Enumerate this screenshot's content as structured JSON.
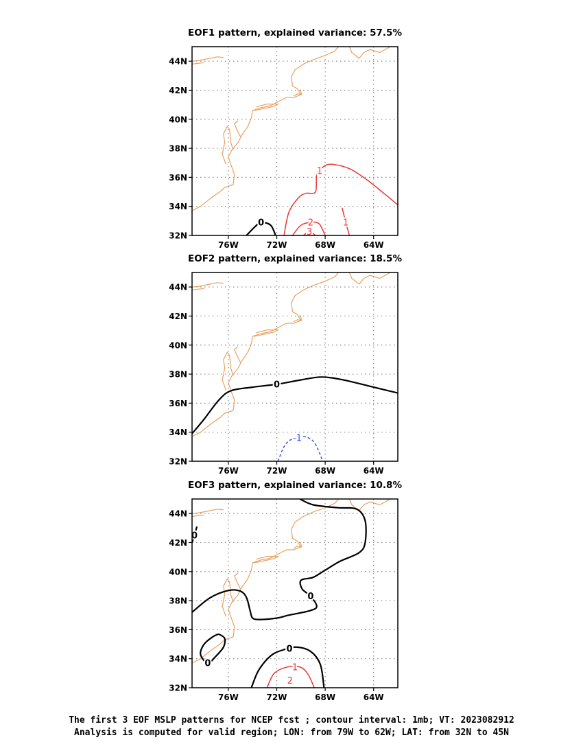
{
  "chart_data": [
    {
      "type": "contour-map",
      "title": "EOF1 pattern, explained variance: 57.5%",
      "xlabel": "",
      "ylabel": "",
      "xlim": [
        -79,
        -62
      ],
      "ylim": [
        32,
        45
      ],
      "x_ticks": [
        -76,
        -72,
        -68,
        -64
      ],
      "x_tick_labels": [
        "76W",
        "72W",
        "68W",
        "64W"
      ],
      "y_ticks": [
        32,
        34,
        36,
        38,
        40,
        42,
        44
      ],
      "y_tick_labels": [
        "32N",
        "34N",
        "36N",
        "38N",
        "40N",
        "42N",
        "44N"
      ],
      "grid": true,
      "contours": [
        {
          "label": "0",
          "color": "#000000",
          "dashed": false,
          "points": [
            [
              -74.5,
              32.0
            ],
            [
              -73.8,
              32.6
            ],
            [
              -73.3,
              32.9
            ],
            [
              -72.5,
              32.7
            ],
            [
              -72.1,
              32.0
            ]
          ]
        },
        {
          "label": "1",
          "color": "#ee3333",
          "dashed": false,
          "points": [
            [
              -71.4,
              32.0
            ],
            [
              -71.0,
              33.6
            ],
            [
              -70.2,
              34.6
            ],
            [
              -69.6,
              34.9
            ],
            [
              -68.8,
              35.0
            ],
            [
              -68.7,
              36.2
            ],
            [
              -68.2,
              36.7
            ],
            [
              -67.5,
              36.9
            ],
            [
              -66.0,
              36.6
            ],
            [
              -64.5,
              35.8
            ],
            [
              -63.0,
              34.8
            ],
            [
              -62.0,
              34.1
            ]
          ]
        },
        {
          "label": "1",
          "color": "#ee3333",
          "dashed": false,
          "points": [
            [
              -66.6,
              33.9
            ],
            [
              -66.3,
              32.9
            ],
            [
              -66.0,
              32.0
            ]
          ]
        },
        {
          "label": "2",
          "color": "#ee3333",
          "dashed": false,
          "points": [
            [
              -70.7,
              32.0
            ],
            [
              -70.0,
              32.7
            ],
            [
              -69.2,
              32.9
            ],
            [
              -68.5,
              32.8
            ],
            [
              -68.0,
              32.0
            ]
          ]
        },
        {
          "label": "3",
          "color": "#ee3333",
          "dashed": false,
          "points": [
            [
              -69.8,
              32.0
            ],
            [
              -69.3,
              32.25
            ],
            [
              -68.8,
              32.0
            ]
          ]
        }
      ]
    },
    {
      "type": "contour-map",
      "title": "EOF2 pattern, explained variance: 18.5%",
      "xlabel": "",
      "ylabel": "",
      "xlim": [
        -79,
        -62
      ],
      "ylim": [
        32,
        45
      ],
      "x_ticks": [
        -76,
        -72,
        -68,
        -64
      ],
      "x_tick_labels": [
        "76W",
        "72W",
        "68W",
        "64W"
      ],
      "y_ticks": [
        32,
        34,
        36,
        38,
        40,
        42,
        44
      ],
      "y_tick_labels": [
        "32N",
        "34N",
        "36N",
        "38N",
        "40N",
        "42N",
        "44N"
      ],
      "grid": true,
      "contours": [
        {
          "label": "0",
          "color": "#000000",
          "dashed": false,
          "points": [
            [
              -79.0,
              33.9
            ],
            [
              -78.0,
              34.9
            ],
            [
              -76.8,
              36.2
            ],
            [
              -75.8,
              36.85
            ],
            [
              -74.0,
              37.1
            ],
            [
              -72.0,
              37.3
            ],
            [
              -70.0,
              37.6
            ],
            [
              -68.3,
              37.8
            ],
            [
              -66.5,
              37.6
            ],
            [
              -64.0,
              37.1
            ],
            [
              -62.0,
              36.7
            ]
          ]
        },
        {
          "label": "-1",
          "color": "#3355ee",
          "dashed": true,
          "points": [
            [
              -71.9,
              32.0
            ],
            [
              -71.4,
              33.0
            ],
            [
              -70.8,
              33.5
            ],
            [
              -69.8,
              33.7
            ],
            [
              -68.9,
              33.3
            ],
            [
              -68.2,
              32.0
            ]
          ]
        }
      ]
    },
    {
      "type": "contour-map",
      "title": "EOF3 pattern, explained variance: 10.8%",
      "xlabel": "",
      "ylabel": "",
      "xlim": [
        -79,
        -62
      ],
      "ylim": [
        32,
        45
      ],
      "x_ticks": [
        -76,
        -72,
        -68,
        -64
      ],
      "x_tick_labels": [
        "76W",
        "72W",
        "68W",
        "64W"
      ],
      "y_ticks": [
        32,
        34,
        36,
        38,
        40,
        42,
        44
      ],
      "y_tick_labels": [
        "32N",
        "34N",
        "36N",
        "38N",
        "40N",
        "42N",
        "44N"
      ],
      "grid": true,
      "contours": [
        {
          "label": "0",
          "color": "#000000",
          "dashed": false,
          "points": [
            [
              -79.0,
              42.0
            ],
            [
              -78.8,
              42.5
            ],
            [
              -78.6,
              43.1
            ]
          ]
        },
        {
          "label": "0",
          "color": "#000000",
          "dashed": false,
          "points": [
            [
              -70.1,
              45.0
            ],
            [
              -69.0,
              44.6
            ],
            [
              -67.0,
              44.4
            ],
            [
              -65.4,
              44.3
            ],
            [
              -64.7,
              43.5
            ],
            [
              -64.7,
              42.0
            ],
            [
              -65.2,
              41.3
            ],
            [
              -66.8,
              40.7
            ],
            [
              -68.0,
              40.1
            ],
            [
              -69.0,
              39.6
            ],
            [
              -70.0,
              39.4
            ],
            [
              -69.9,
              38.8
            ],
            [
              -69.2,
              38.3
            ],
            [
              -68.7,
              37.6
            ],
            [
              -69.3,
              37.3
            ],
            [
              -71.0,
              37.0
            ],
            [
              -72.0,
              36.8
            ],
            [
              -73.4,
              36.7
            ],
            [
              -74.0,
              36.8
            ],
            [
              -74.2,
              37.3
            ],
            [
              -74.5,
              38.2
            ],
            [
              -75.0,
              38.65
            ],
            [
              -76.0,
              38.7
            ],
            [
              -77.5,
              38.2
            ],
            [
              -79.0,
              37.2
            ]
          ]
        },
        {
          "label": "0",
          "color": "#000000",
          "dashed": false,
          "points": [
            [
              -76.8,
              35.7
            ],
            [
              -76.3,
              35.4
            ],
            [
              -76.4,
              34.8
            ],
            [
              -77.0,
              34.2
            ],
            [
              -77.7,
              33.7
            ],
            [
              -78.3,
              34.3
            ],
            [
              -78.0,
              35.0
            ],
            [
              -77.3,
              35.5
            ],
            [
              -76.8,
              35.7
            ]
          ]
        },
        {
          "label": "0",
          "color": "#000000",
          "dashed": false,
          "points": [
            [
              -74.1,
              32.0
            ],
            [
              -73.5,
              33.2
            ],
            [
              -72.5,
              34.2
            ],
            [
              -71.5,
              34.6
            ],
            [
              -70.4,
              34.8
            ],
            [
              -69.2,
              34.5
            ],
            [
              -68.4,
              33.6
            ],
            [
              -68.1,
              32.0
            ]
          ]
        },
        {
          "label": "1",
          "color": "#ee3333",
          "dashed": false,
          "points": [
            [
              -72.8,
              32.0
            ],
            [
              -72.2,
              33.0
            ],
            [
              -71.0,
              33.45
            ],
            [
              -70.0,
              33.4
            ],
            [
              -69.4,
              32.9
            ],
            [
              -68.9,
              32.0
            ]
          ]
        }
      ],
      "interior_labels": [
        {
          "text": "2",
          "lon": -70.9,
          "lat": 32.5,
          "color": "#ee3333"
        }
      ]
    }
  ],
  "caption": {
    "line1": "The first 3 EOF MSLP patterns for NCEP fcst ; contour interval: 1mb; VT: 2023082912",
    "line2": "Analysis is computed for valid region; LON: from 79W to 62W; LAT: from 32N to 45N"
  },
  "colors": {
    "coast": "#e8a060",
    "grid": "#888888",
    "positive": "#ee3333",
    "negative": "#3355ee",
    "zero": "#000000"
  }
}
